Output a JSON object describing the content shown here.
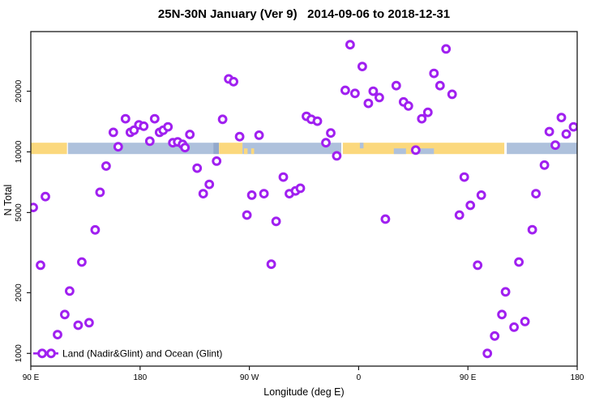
{
  "title": "25N-30N January (Ver 9)   2014-09-06 to 2018-12-31",
  "colors": {
    "marker": "#A020F0",
    "land": "#FBD87D",
    "ocean": "#AEC1DC",
    "ocean_dark": "#93A9CC",
    "axis": "#1a1a1a",
    "background": "#ffffff"
  },
  "chart_data": {
    "type": "scatter",
    "title": "25N-30N January (Ver 9)   2014-09-06 to 2018-12-31",
    "xlabel": "Longitude (deg E)",
    "ylabel": "N Total",
    "x_axis": {
      "range": [
        90,
        540
      ],
      "ticks": [
        {
          "value": 90,
          "label": "90 E"
        },
        {
          "value": 180,
          "label": "180"
        },
        {
          "value": 270,
          "label": "90 W"
        },
        {
          "value": 360,
          "label": "0"
        },
        {
          "value": 450,
          "label": "90 E"
        },
        {
          "value": 540,
          "label": "180"
        }
      ]
    },
    "y_axis": {
      "scale": "log",
      "range": [
        865,
        39500
      ],
      "ticks": [
        {
          "value": 1000,
          "label": "1000"
        },
        {
          "value": 2000,
          "label": "2000"
        },
        {
          "value": 5000,
          "label": "5000"
        },
        {
          "value": 10000,
          "label": "10000"
        },
        {
          "value": 20000,
          "label": "20000"
        }
      ]
    },
    "grid": false,
    "legend": {
      "label": "Land (Nadir&Glint) and Ocean (Glint)",
      "position": "bottom-left",
      "marker": "open-circle-on-line"
    },
    "band": {
      "description": "land (orange) vs ocean (blue) strip along longitude",
      "value_top": 11100,
      "value_bottom": 9750,
      "segments": [
        {
          "from": 90,
          "to": 119.8,
          "type": "land"
        },
        {
          "from": 120.6,
          "to": 240.3,
          "type": "ocean"
        },
        {
          "from": 240.3,
          "to": 245,
          "type": "ocean_dark"
        },
        {
          "from": 245,
          "to": 264.3,
          "type": "land"
        },
        {
          "from": 264.3,
          "to": 345.7,
          "type": "ocean"
        },
        {
          "from": 347,
          "to": 480,
          "type": "land"
        },
        {
          "from": 482,
          "to": 540,
          "type": "ocean"
        }
      ],
      "overlays": [
        {
          "from": 265.5,
          "to": 268.5,
          "type": "land",
          "part": "bottom"
        },
        {
          "from": 271.5,
          "to": 274,
          "type": "land",
          "part": "bottom"
        },
        {
          "from": 361,
          "to": 364,
          "type": "ocean",
          "part": "top"
        },
        {
          "from": 389,
          "to": 399,
          "type": "ocean",
          "part": "bottom"
        },
        {
          "from": 404,
          "to": 422,
          "type": "ocean",
          "part": "bottom"
        }
      ]
    },
    "series": [
      {
        "name": "Land (Nadir&Glint) and Ocean (Glint)",
        "marker": "open-circle",
        "color": "#A020F0",
        "points": [
          [
            168,
            14600
          ],
          [
            158,
            12500
          ],
          [
            172,
            12500
          ],
          [
            175,
            12800
          ],
          [
            179,
            13600
          ],
          [
            183,
            13400
          ],
          [
            192,
            14600
          ],
          [
            196,
            12500
          ],
          [
            199,
            12800
          ],
          [
            203,
            13300
          ],
          [
            188,
            11300
          ],
          [
            221,
            12200
          ],
          [
            207,
            11100
          ],
          [
            211,
            11200
          ],
          [
            215,
            10900
          ],
          [
            217,
            10500
          ],
          [
            162,
            10600
          ],
          [
            152,
            8500
          ],
          [
            227,
            8300
          ],
          [
            237,
            6900
          ],
          [
            147,
            6300
          ],
          [
            232,
            6200
          ],
          [
            102,
            6000
          ],
          [
            92,
            5300
          ],
          [
            353,
            34000
          ],
          [
            363,
            26500
          ],
          [
            253,
            23000
          ],
          [
            257,
            22300
          ],
          [
            349,
            20200
          ],
          [
            357,
            19500
          ],
          [
            372,
            20000
          ],
          [
            377,
            18600
          ],
          [
            368,
            17400
          ],
          [
            248,
            14500
          ],
          [
            317,
            15000
          ],
          [
            321,
            14500
          ],
          [
            326,
            14200
          ],
          [
            262,
            11900
          ],
          [
            278,
            12100
          ],
          [
            337,
            12400
          ],
          [
            333,
            11100
          ],
          [
            342,
            9550
          ],
          [
            243,
            9000
          ],
          [
            298,
            7500
          ],
          [
            272,
            6100
          ],
          [
            282,
            6200
          ],
          [
            303,
            6200
          ],
          [
            308,
            6400
          ],
          [
            312,
            6600
          ],
          [
            432,
            32400
          ],
          [
            422,
            24500
          ],
          [
            427,
            21300
          ],
          [
            391,
            21300
          ],
          [
            437,
            19300
          ],
          [
            397,
            17700
          ],
          [
            401,
            16900
          ],
          [
            412,
            14600
          ],
          [
            417,
            15700
          ],
          [
            527,
            14800
          ],
          [
            537,
            13300
          ],
          [
            517,
            12600
          ],
          [
            531,
            12250
          ],
          [
            522,
            10800
          ],
          [
            407,
            10200
          ],
          [
            513,
            8600
          ],
          [
            447,
            7500
          ],
          [
            506,
            6200
          ],
          [
            461,
            6100
          ],
          [
            143,
            4100
          ],
          [
            98,
            2740
          ],
          [
            132,
            2840
          ],
          [
            122,
            2040
          ],
          [
            118,
            1560
          ],
          [
            138,
            1420
          ],
          [
            129,
            1380
          ],
          [
            112,
            1240
          ],
          [
            268,
            4860
          ],
          [
            292,
            4520
          ],
          [
            382,
            4640
          ],
          [
            288,
            2770
          ],
          [
            452,
            5430
          ],
          [
            443,
            4860
          ],
          [
            503,
            4110
          ],
          [
            458,
            2740
          ],
          [
            492,
            2840
          ],
          [
            481,
            2020
          ],
          [
            478,
            1560
          ],
          [
            497,
            1440
          ],
          [
            488,
            1350
          ],
          [
            472,
            1220
          ],
          [
            466,
            1000
          ]
        ]
      }
    ]
  }
}
